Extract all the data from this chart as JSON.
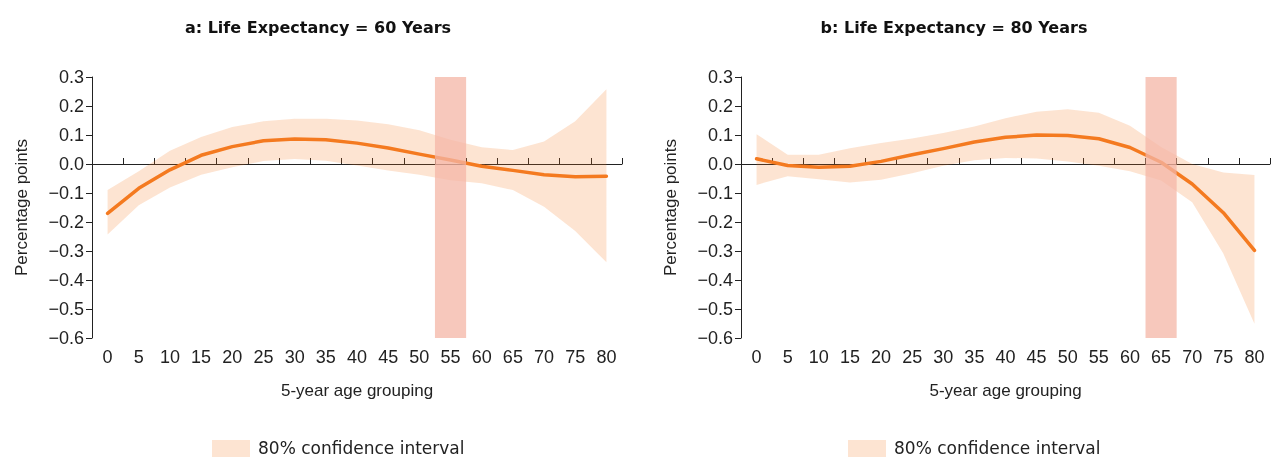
{
  "chart_data": [
    {
      "type": "line",
      "title": "a: Life Expectancy = 60 Years",
      "xlabel": "5-year age grouping",
      "ylabel": "Percentage points",
      "categories": [
        "0",
        "5",
        "10",
        "15",
        "20",
        "25",
        "30",
        "35",
        "40",
        "45",
        "50",
        "55",
        "60",
        "65",
        "70",
        "75",
        "80"
      ],
      "series": [
        {
          "color": "#f47a20",
          "values": [
            -0.17,
            -0.084,
            -0.02,
            0.03,
            0.06,
            0.08,
            0.086,
            0.084,
            0.072,
            0.055,
            0.034,
            0.014,
            -0.008,
            -0.022,
            -0.037,
            -0.044,
            -0.042
          ],
          "upper": [
            -0.09,
            -0.025,
            0.046,
            0.093,
            0.128,
            0.147,
            0.156,
            0.156,
            0.15,
            0.137,
            0.116,
            0.084,
            0.058,
            0.048,
            0.078,
            0.147,
            0.258
          ],
          "lower": [
            -0.243,
            -0.142,
            -0.081,
            -0.037,
            -0.011,
            0.01,
            0.017,
            0.011,
            -0.005,
            -0.022,
            -0.037,
            -0.056,
            -0.066,
            -0.09,
            -0.147,
            -0.231,
            -0.339
          ]
        }
      ],
      "ylim": [
        -0.6,
        0.3
      ],
      "yticks": [
        {
          "value": -0.6,
          "label": "−0.6"
        },
        {
          "value": -0.5,
          "label": "−0.5"
        },
        {
          "value": -0.4,
          "label": "−0.4"
        },
        {
          "value": -0.3,
          "label": "−0.3"
        },
        {
          "value": -0.2,
          "label": "−0.2"
        },
        {
          "value": -0.1,
          "label": "−0.1"
        },
        {
          "value": 0,
          "label": "0.0"
        },
        0.1,
        0.2,
        0.3
      ],
      "bands": [
        {
          "axis": "x",
          "from": "55",
          "to": "55",
          "color": "#f4b6a6"
        }
      ],
      "annotations": [
        "80% confidence interval"
      ],
      "marker": "none",
      "line_style": "solid"
    },
    {
      "type": "line",
      "title": "b: Life Expectancy = 80 Years",
      "xlabel": "5-year age grouping",
      "ylabel": "Percentage points",
      "categories": [
        "0",
        "5",
        "10",
        "15",
        "20",
        "25",
        "30",
        "35",
        "40",
        "45",
        "50",
        "55",
        "60",
        "65",
        "70",
        "75",
        "80"
      ],
      "series": [
        {
          "color": "#f47a20",
          "values": [
            0.018,
            -0.005,
            -0.011,
            -0.008,
            0.009,
            0.032,
            0.053,
            0.076,
            0.092,
            0.1,
            0.098,
            0.087,
            0.057,
            0.006,
            -0.069,
            -0.168,
            -0.298
          ],
          "upper": [
            0.103,
            0.032,
            0.032,
            0.054,
            0.072,
            0.088,
            0.107,
            0.129,
            0.158,
            0.18,
            0.189,
            0.177,
            0.132,
            0.059,
            0.0,
            -0.029,
            -0.038
          ],
          "lower": [
            -0.072,
            -0.042,
            -0.053,
            -0.064,
            -0.054,
            -0.032,
            -0.006,
            0.013,
            0.021,
            0.019,
            0.009,
            -0.006,
            -0.025,
            -0.057,
            -0.132,
            -0.309,
            -0.551
          ]
        }
      ],
      "ylim": [
        -0.6,
        0.3
      ],
      "yticks": [
        {
          "value": -0.6,
          "label": "−0.6"
        },
        {
          "value": -0.5,
          "label": "−0.5"
        },
        {
          "value": -0.4,
          "label": "−0.4"
        },
        {
          "value": -0.3,
          "label": "−0.3"
        },
        {
          "value": -0.2,
          "label": "−0.2"
        },
        {
          "value": -0.1,
          "label": "−0.1"
        },
        {
          "value": 0,
          "label": "0.0"
        },
        0.1,
        0.2,
        0.3
      ],
      "bands": [
        {
          "axis": "x",
          "from": "65",
          "to": "65",
          "color": "#f4b6a6"
        }
      ],
      "annotations": [
        "80% confidence interval"
      ],
      "marker": "none",
      "line_style": "solid"
    }
  ]
}
